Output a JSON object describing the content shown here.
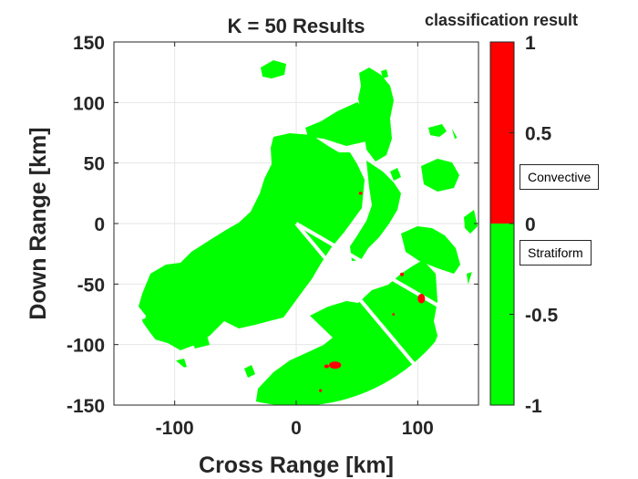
{
  "chart_data": {
    "type": "heatmap",
    "title": "K = 50 Results",
    "xlabel": "Cross Range [km]",
    "ylabel": "Down Range [km]",
    "xlim": [
      -150,
      150
    ],
    "ylim": [
      -150,
      150
    ],
    "x_ticks": [
      -100,
      0,
      100
    ],
    "y_ticks": [
      150,
      100,
      50,
      0,
      -50,
      -100,
      -150
    ],
    "grid": true,
    "radar": {
      "center": [
        0,
        0
      ],
      "max_range_km": 150,
      "blocked_beams_deg": [
        -30,
        -50
      ],
      "echo_category": "Stratiform",
      "convective_cells": [
        {
          "x": 32,
          "y": -117,
          "rx": 5,
          "ry": 3
        },
        {
          "x": 25,
          "y": -118,
          "rx": 2,
          "ry": 1.5
        },
        {
          "x": 103,
          "y": -62,
          "rx": 3,
          "ry": 4
        },
        {
          "x": 87,
          "y": -42,
          "rx": 1.5,
          "ry": 1.5
        },
        {
          "x": 53,
          "y": 25,
          "rx": 1.5,
          "ry": 1.2
        },
        {
          "x": 20,
          "y": -138,
          "rx": 1.2,
          "ry": 1.2
        },
        {
          "x": 80,
          "y": -75,
          "rx": 1,
          "ry": 1
        }
      ]
    },
    "colorbar": {
      "title": "classification result",
      "range": [
        -1,
        1
      ],
      "ticks": [
        "1",
        "0.5",
        "0",
        "-0.5",
        "-1"
      ],
      "tick_values": [
        1,
        0.5,
        0,
        -0.5,
        -1
      ],
      "segments": [
        {
          "from": 0,
          "to": 1,
          "color": "#ff0000",
          "label": "Convective"
        },
        {
          "from": -1,
          "to": 0,
          "color": "#00ff00",
          "label": "Stratiform"
        }
      ]
    }
  },
  "colors": {
    "stratiform": "#00ff00",
    "convective": "#ff0000",
    "grid": "#e6e6e6",
    "axis": "#262626"
  }
}
